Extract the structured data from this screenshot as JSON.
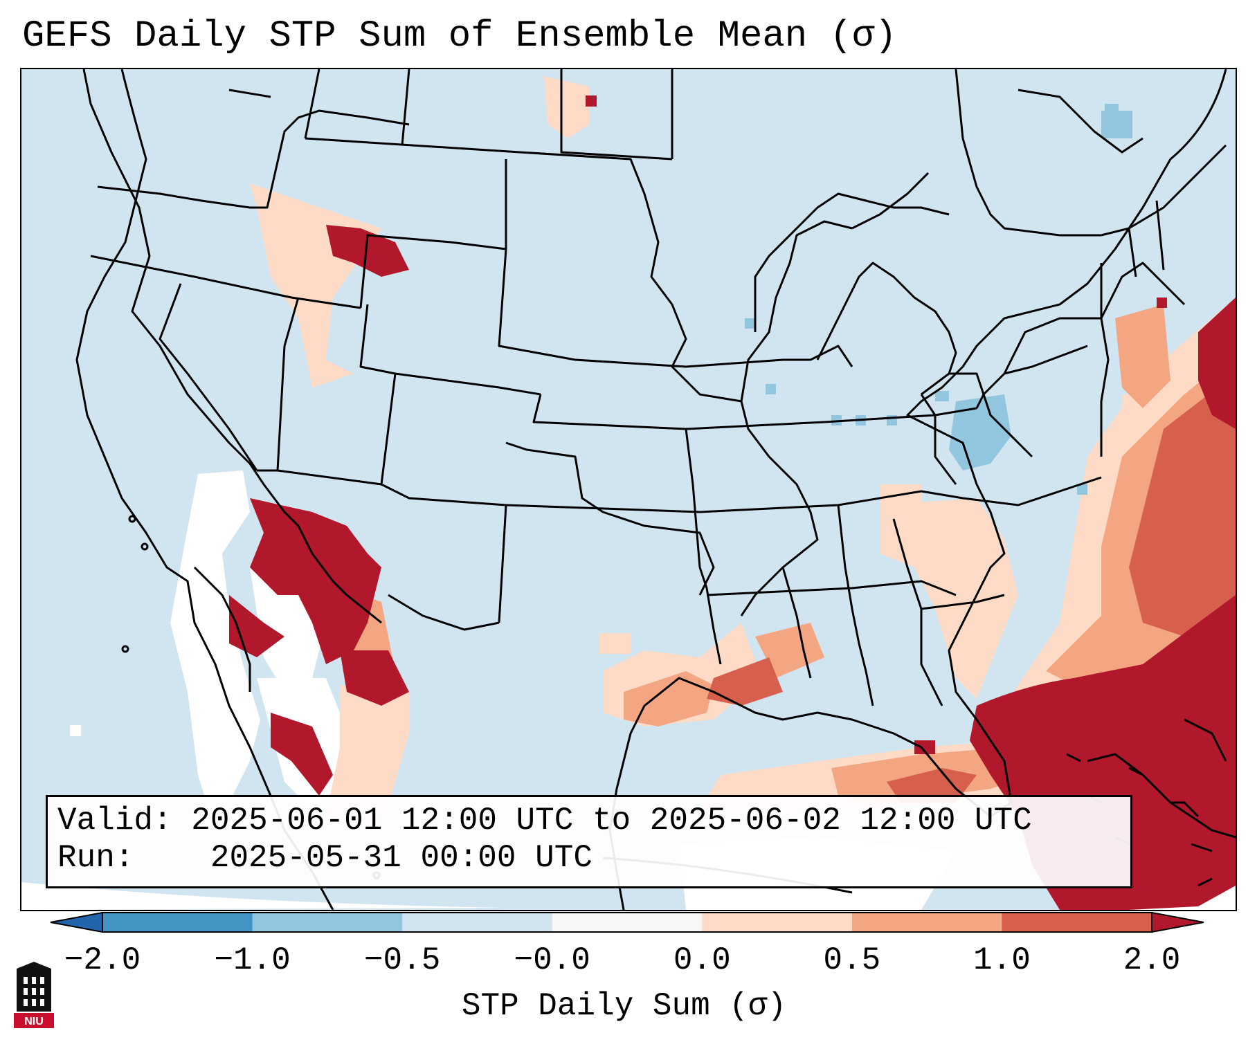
{
  "title": "GEFS Daily STP Sum of Ensemble Mean (σ)",
  "valid_label": "Valid:",
  "valid_text": "2025-06-01 12:00 UTC to 2025-06-02 12:00 UTC",
  "run_label": "Run:",
  "run_text": "2025-05-31 00:00 UTC",
  "colorbar": {
    "label": "STP Daily Sum (σ)",
    "ticks": [
      "−2.0",
      "−1.0",
      "−0.5",
      "−0.0",
      "0.0",
      "0.5",
      "1.0",
      "2.0"
    ],
    "colors": [
      "#2166ac",
      "#4393c3",
      "#92c5de",
      "#d1e5f0",
      "#f7f7f7",
      "#fddbc7",
      "#f4a582",
      "#d6604d",
      "#b2182b"
    ],
    "extend": "both"
  },
  "logo_text": "NIU",
  "map_colors": {
    "background": "#d1e5f0",
    "neutral": "#ffffff",
    "low_positive": "#fddbc7",
    "mid_positive": "#f4a582",
    "high_positive": "#d6604d",
    "max_positive": "#b2182b",
    "low_negative": "#92c5de",
    "border": "#000000"
  }
}
